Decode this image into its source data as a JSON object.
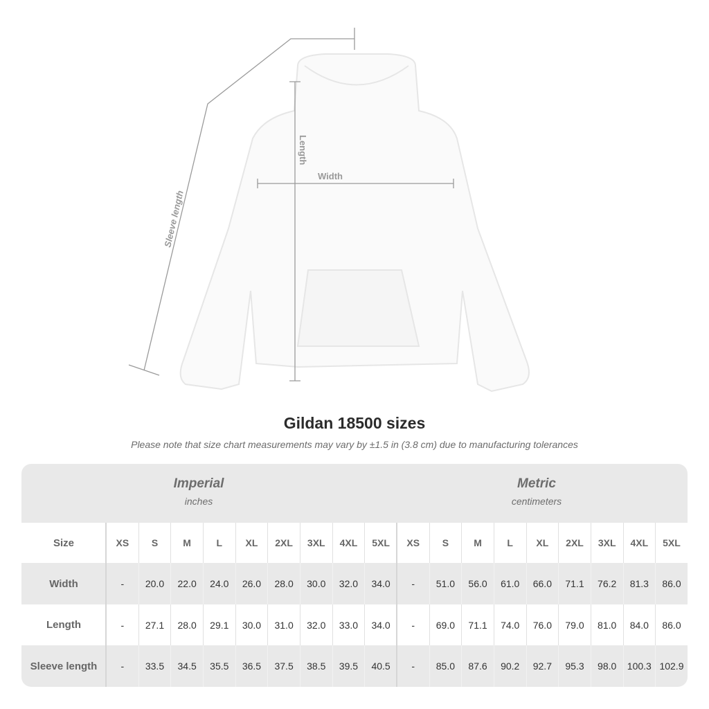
{
  "diagram": {
    "labels": {
      "sleeve": "Sleeve length",
      "length": "Length",
      "width": "Width"
    }
  },
  "title": "Gildan 18500 sizes",
  "subtitle": "Please note that size chart measurements may vary by ±1.5 in (3.8 cm) due to manufacturing tolerances",
  "table": {
    "imperial": {
      "name": "Imperial",
      "unit": "inches"
    },
    "metric": {
      "name": "Metric",
      "unit": "centimeters"
    },
    "size_label": "Size",
    "sizes": [
      "XS",
      "S",
      "M",
      "L",
      "XL",
      "2XL",
      "3XL",
      "4XL",
      "5XL"
    ],
    "rows": [
      {
        "label": "Width",
        "imperial": [
          "-",
          "20.0",
          "22.0",
          "24.0",
          "26.0",
          "28.0",
          "30.0",
          "32.0",
          "34.0"
        ],
        "metric": [
          "-",
          "51.0",
          "56.0",
          "61.0",
          "66.0",
          "71.1",
          "76.2",
          "81.3",
          "86.0"
        ]
      },
      {
        "label": "Length",
        "imperial": [
          "-",
          "27.1",
          "28.0",
          "29.1",
          "30.0",
          "31.0",
          "32.0",
          "33.0",
          "34.0"
        ],
        "metric": [
          "-",
          "69.0",
          "71.1",
          "74.0",
          "76.0",
          "79.0",
          "81.0",
          "84.0",
          "86.0"
        ]
      },
      {
        "label": "Sleeve length",
        "imperial": [
          "-",
          "33.5",
          "34.5",
          "35.5",
          "36.5",
          "37.5",
          "38.5",
          "39.5",
          "40.5"
        ],
        "metric": [
          "-",
          "85.0",
          "87.6",
          "90.2",
          "92.7",
          "95.3",
          "98.0",
          "100.3",
          "102.9"
        ]
      }
    ]
  }
}
